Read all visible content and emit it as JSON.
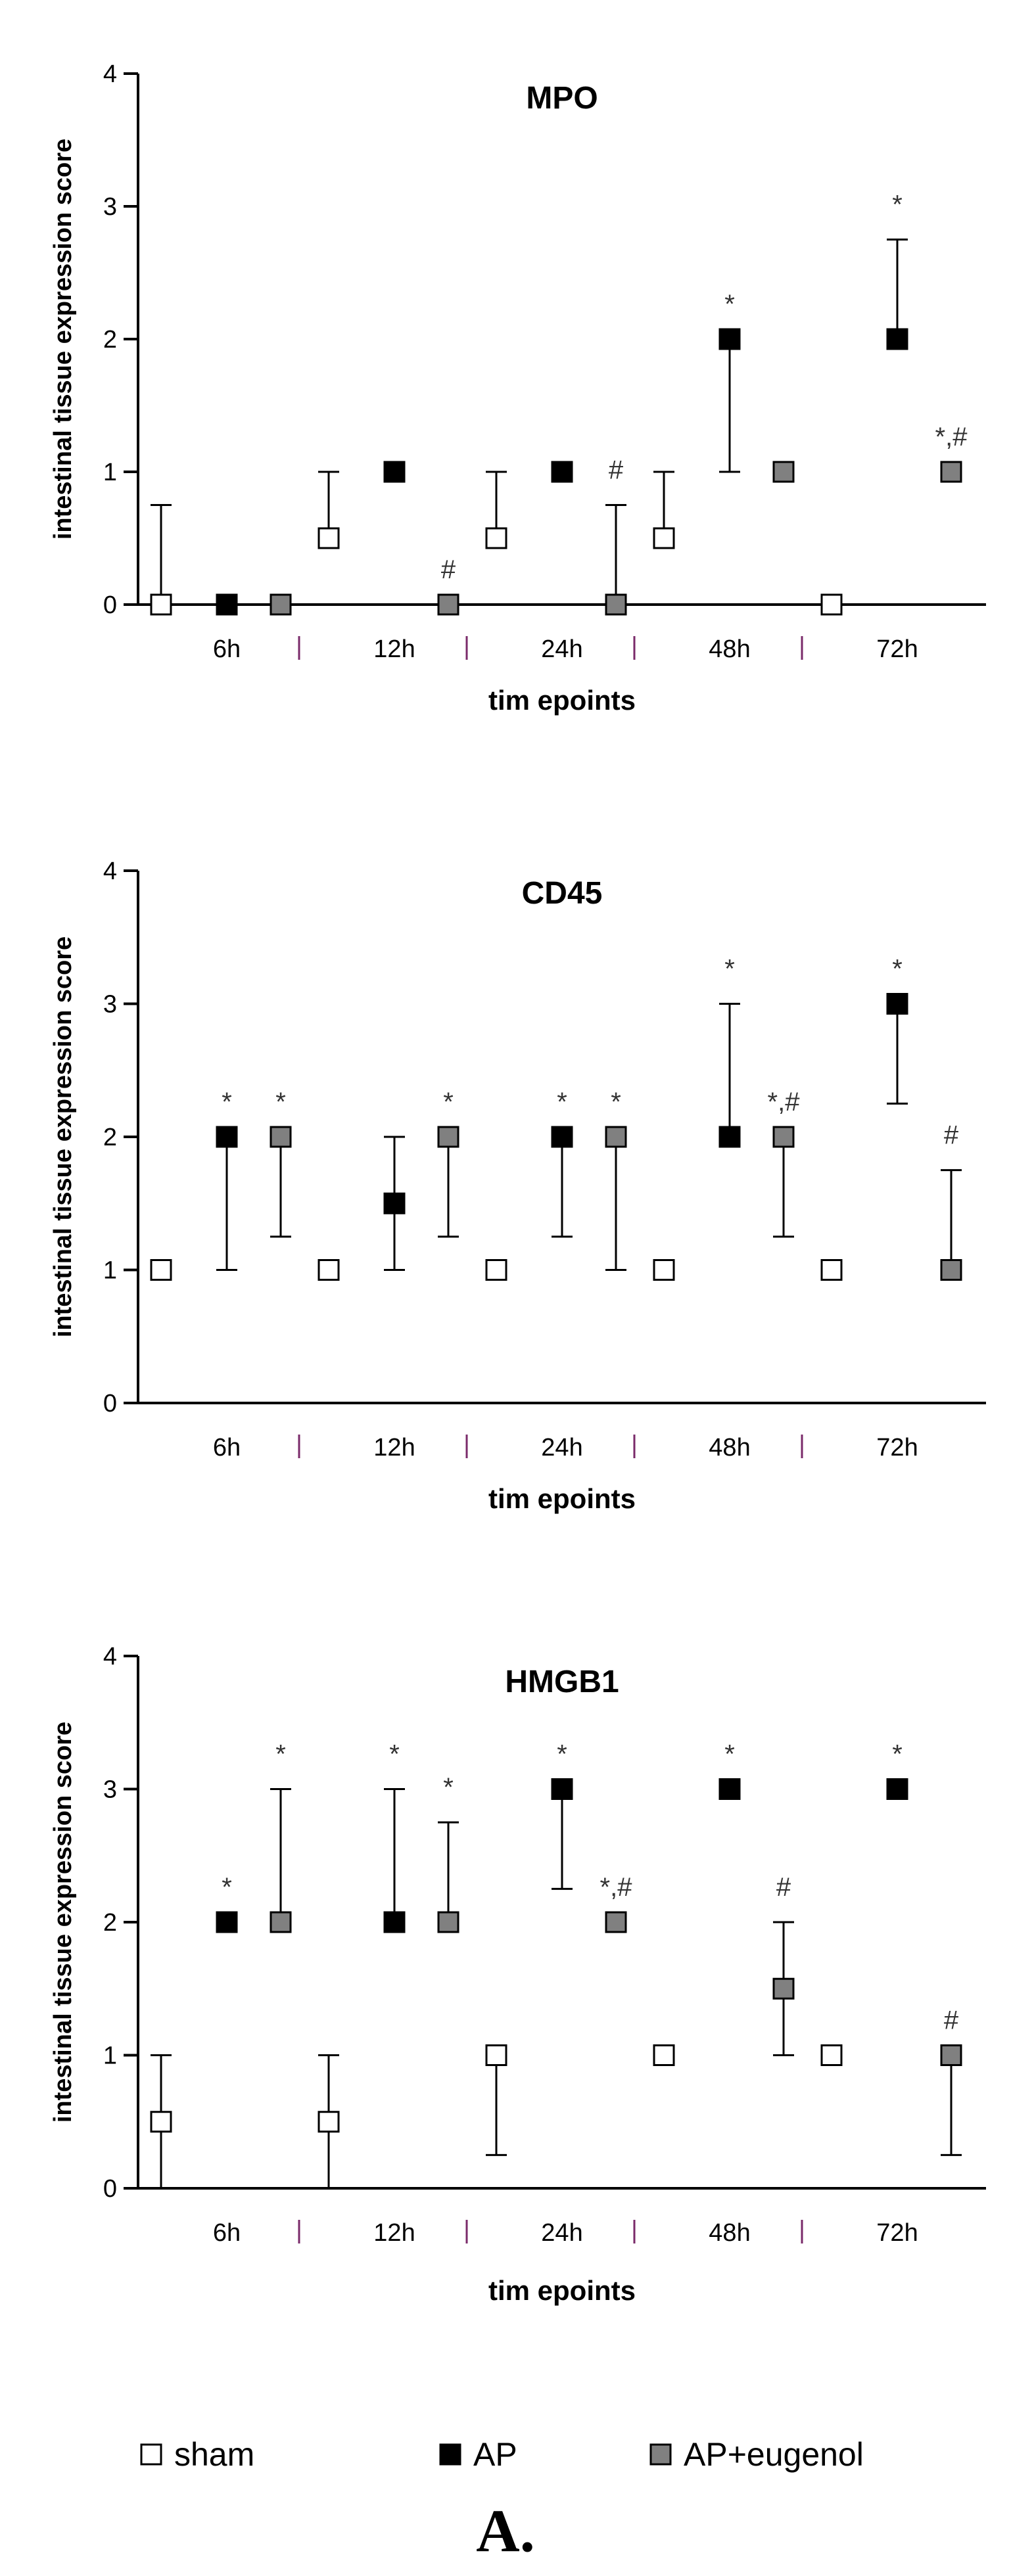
{
  "colors": {
    "sham": "#ffffff",
    "AP": "#000000",
    "AP+eugenol": "#808080",
    "axis": "#000000",
    "separator": "#7a2a6a"
  },
  "legend": [
    {
      "key": "sham",
      "label": "sham"
    },
    {
      "key": "AP",
      "label": "AP"
    },
    {
      "key": "AP+eugenol",
      "label": "AP+eugenol"
    }
  ],
  "panel_label": "A.",
  "chart_data": [
    {
      "type": "scatter",
      "title": "MPO",
      "xlabel": "tim epoints",
      "ylabel": "intestinal tissue expression score",
      "ylim": [
        0,
        4
      ],
      "yticks": [
        "0",
        "1",
        "2",
        "3",
        "4"
      ],
      "categories": [
        "6h",
        "12h",
        "24h",
        "48h",
        "72h"
      ],
      "series": [
        {
          "name": "sham",
          "values": [
            0,
            0.5,
            0.5,
            0.5,
            0
          ],
          "err_low": [
            0,
            0.5,
            0.5,
            0.5,
            0
          ],
          "err_high": [
            0.75,
            1,
            1,
            1,
            0
          ],
          "annotations": [
            "",
            "",
            "",
            "",
            ""
          ]
        },
        {
          "name": "AP",
          "values": [
            0,
            1,
            1,
            2,
            2
          ],
          "err_low": [
            0,
            1,
            1,
            1,
            2
          ],
          "err_high": [
            0,
            1,
            1,
            2,
            2.75
          ],
          "annotations": [
            "",
            "",
            "",
            "*",
            "*"
          ]
        },
        {
          "name": "AP+eugenol",
          "values": [
            0,
            0,
            0,
            1,
            1
          ],
          "err_low": [
            0,
            0,
            0,
            1,
            1
          ],
          "err_high": [
            0,
            0,
            0.75,
            1,
            1
          ],
          "annotations": [
            "",
            "#",
            "#",
            "",
            "*,#"
          ]
        }
      ]
    },
    {
      "type": "scatter",
      "title": "CD45",
      "xlabel": "tim epoints",
      "ylabel": "intestinal tissue expression score",
      "ylim": [
        0,
        4
      ],
      "yticks": [
        "0",
        "1",
        "2",
        "3",
        "4"
      ],
      "categories": [
        "6h",
        "12h",
        "24h",
        "48h",
        "72h"
      ],
      "series": [
        {
          "name": "sham",
          "values": [
            1,
            1,
            1,
            1,
            1
          ],
          "err_low": [
            1,
            1,
            1,
            1,
            1
          ],
          "err_high": [
            1,
            1,
            1,
            1,
            1
          ],
          "annotations": [
            "",
            "",
            "",
            "",
            ""
          ]
        },
        {
          "name": "AP",
          "values": [
            2,
            1.5,
            2,
            2,
            3
          ],
          "err_low": [
            1,
            1,
            1.25,
            2,
            2.25
          ],
          "err_high": [
            2,
            2,
            2,
            3,
            3
          ],
          "annotations": [
            "*",
            "",
            "*",
            "*",
            "*"
          ]
        },
        {
          "name": "AP+eugenol",
          "values": [
            2,
            2,
            2,
            2,
            1
          ],
          "err_low": [
            1.25,
            1.25,
            1,
            1.25,
            1
          ],
          "err_high": [
            2,
            2,
            2,
            2,
            1.75
          ],
          "annotations": [
            "*",
            "*",
            "*",
            "*,#",
            "#"
          ]
        }
      ]
    },
    {
      "type": "scatter",
      "title": "HMGB1",
      "xlabel": "tim epoints",
      "ylabel": "intestinal tissue expression score",
      "ylim": [
        0,
        4
      ],
      "yticks": [
        "0",
        "1",
        "2",
        "3",
        "4"
      ],
      "categories": [
        "6h",
        "12h",
        "24h",
        "48h",
        "72h"
      ],
      "series": [
        {
          "name": "sham",
          "values": [
            0.5,
            0.5,
            1,
            1,
            1
          ],
          "err_low": [
            0,
            0,
            0.25,
            1,
            1
          ],
          "err_high": [
            1,
            1,
            1,
            1,
            1
          ],
          "annotations": [
            "",
            "",
            "",
            "",
            ""
          ]
        },
        {
          "name": "AP",
          "values": [
            2,
            2,
            3,
            3,
            3
          ],
          "err_low": [
            2,
            2,
            2.25,
            3,
            3
          ],
          "err_high": [
            2,
            3,
            3,
            3,
            3
          ],
          "annotations": [
            "*",
            "*",
            "*",
            "*",
            "*"
          ]
        },
        {
          "name": "AP+eugenol",
          "values": [
            2,
            2,
            2,
            1.5,
            1
          ],
          "err_low": [
            2,
            2,
            2,
            1,
            0.25
          ],
          "err_high": [
            3,
            2.75,
            2,
            2,
            1
          ],
          "annotations": [
            "*",
            "*",
            "*,#",
            "#",
            "#"
          ]
        }
      ]
    }
  ]
}
